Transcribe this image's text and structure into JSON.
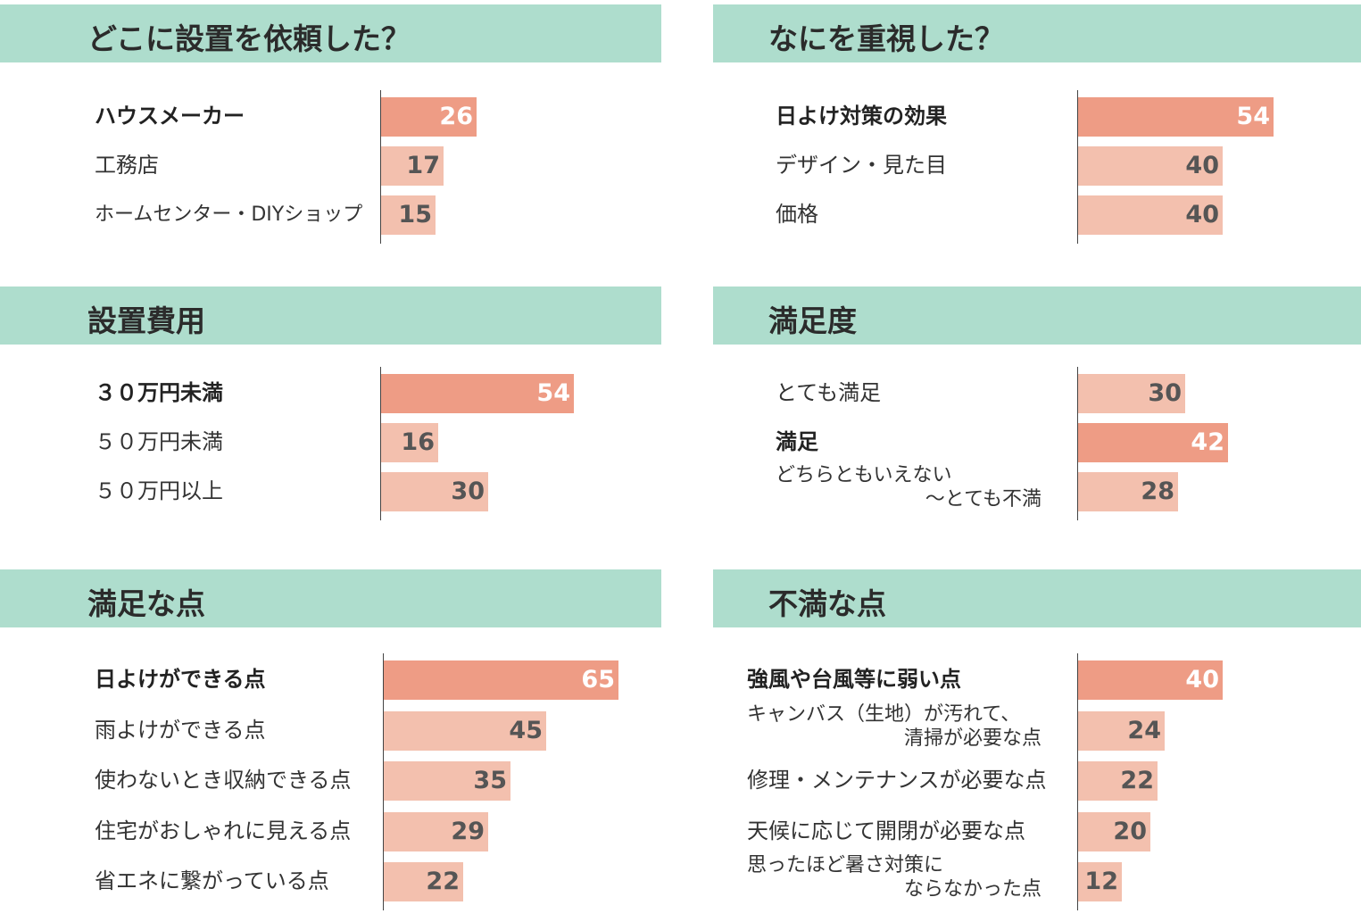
{
  "colors": {
    "header_bg": "#aeddcd",
    "bar_highlight": "#ee9c85",
    "bar_normal": "#f3c0ae",
    "value_on_highlight": "#ffffff",
    "value_on_normal": "#555555"
  },
  "chart_data": [
    {
      "type": "bar",
      "orientation": "horizontal",
      "title": "どこに設置を依頼した？",
      "categories": [
        [
          "ハウスメーカー"
        ],
        [
          "工務店"
        ],
        [
          "ホームセンター・DIYショップ"
        ]
      ],
      "values": [
        26,
        17,
        15
      ],
      "highlight_index": 0
    },
    {
      "type": "bar",
      "orientation": "horizontal",
      "title": "なにを重視した？",
      "categories": [
        [
          "日よけ対策の効果"
        ],
        [
          "デザイン・見た目"
        ],
        [
          "価格"
        ]
      ],
      "values": [
        54,
        40,
        40
      ],
      "highlight_index": 0
    },
    {
      "type": "bar",
      "orientation": "horizontal",
      "title": "設置費用",
      "categories": [
        [
          "３０万円未満"
        ],
        [
          "５０万円未満"
        ],
        [
          "５０万円以上"
        ]
      ],
      "values": [
        54,
        16,
        30
      ],
      "highlight_index": 0
    },
    {
      "type": "bar",
      "orientation": "horizontal",
      "title": "満足度",
      "categories": [
        [
          "とても満足"
        ],
        [
          "満足"
        ],
        [
          "どちらともいえない",
          "〜とても不満"
        ]
      ],
      "values": [
        30,
        42,
        28
      ],
      "highlight_index": 1
    },
    {
      "type": "bar",
      "orientation": "horizontal",
      "title": "満足な点",
      "categories": [
        [
          "日よけができる点"
        ],
        [
          "雨よけができる点"
        ],
        [
          "使わないとき収納できる点"
        ],
        [
          "住宅がおしゃれに見える点"
        ],
        [
          "省エネに繋がっている点"
        ]
      ],
      "values": [
        65,
        45,
        35,
        29,
        22
      ],
      "highlight_index": 0
    },
    {
      "type": "bar",
      "orientation": "horizontal",
      "title": "不満な点",
      "categories": [
        [
          "強風や台風等に弱い点"
        ],
        [
          "キャンバス（生地）が汚れて、",
          "清掃が必要な点"
        ],
        [
          "修理・メンテナンスが必要な点"
        ],
        [
          "天候に応じて開閉が必要な点"
        ],
        [
          "思ったほど暑さ対策に",
          "ならなかった点"
        ]
      ],
      "values": [
        40,
        24,
        22,
        20,
        12
      ],
      "highlight_index": 0
    }
  ]
}
